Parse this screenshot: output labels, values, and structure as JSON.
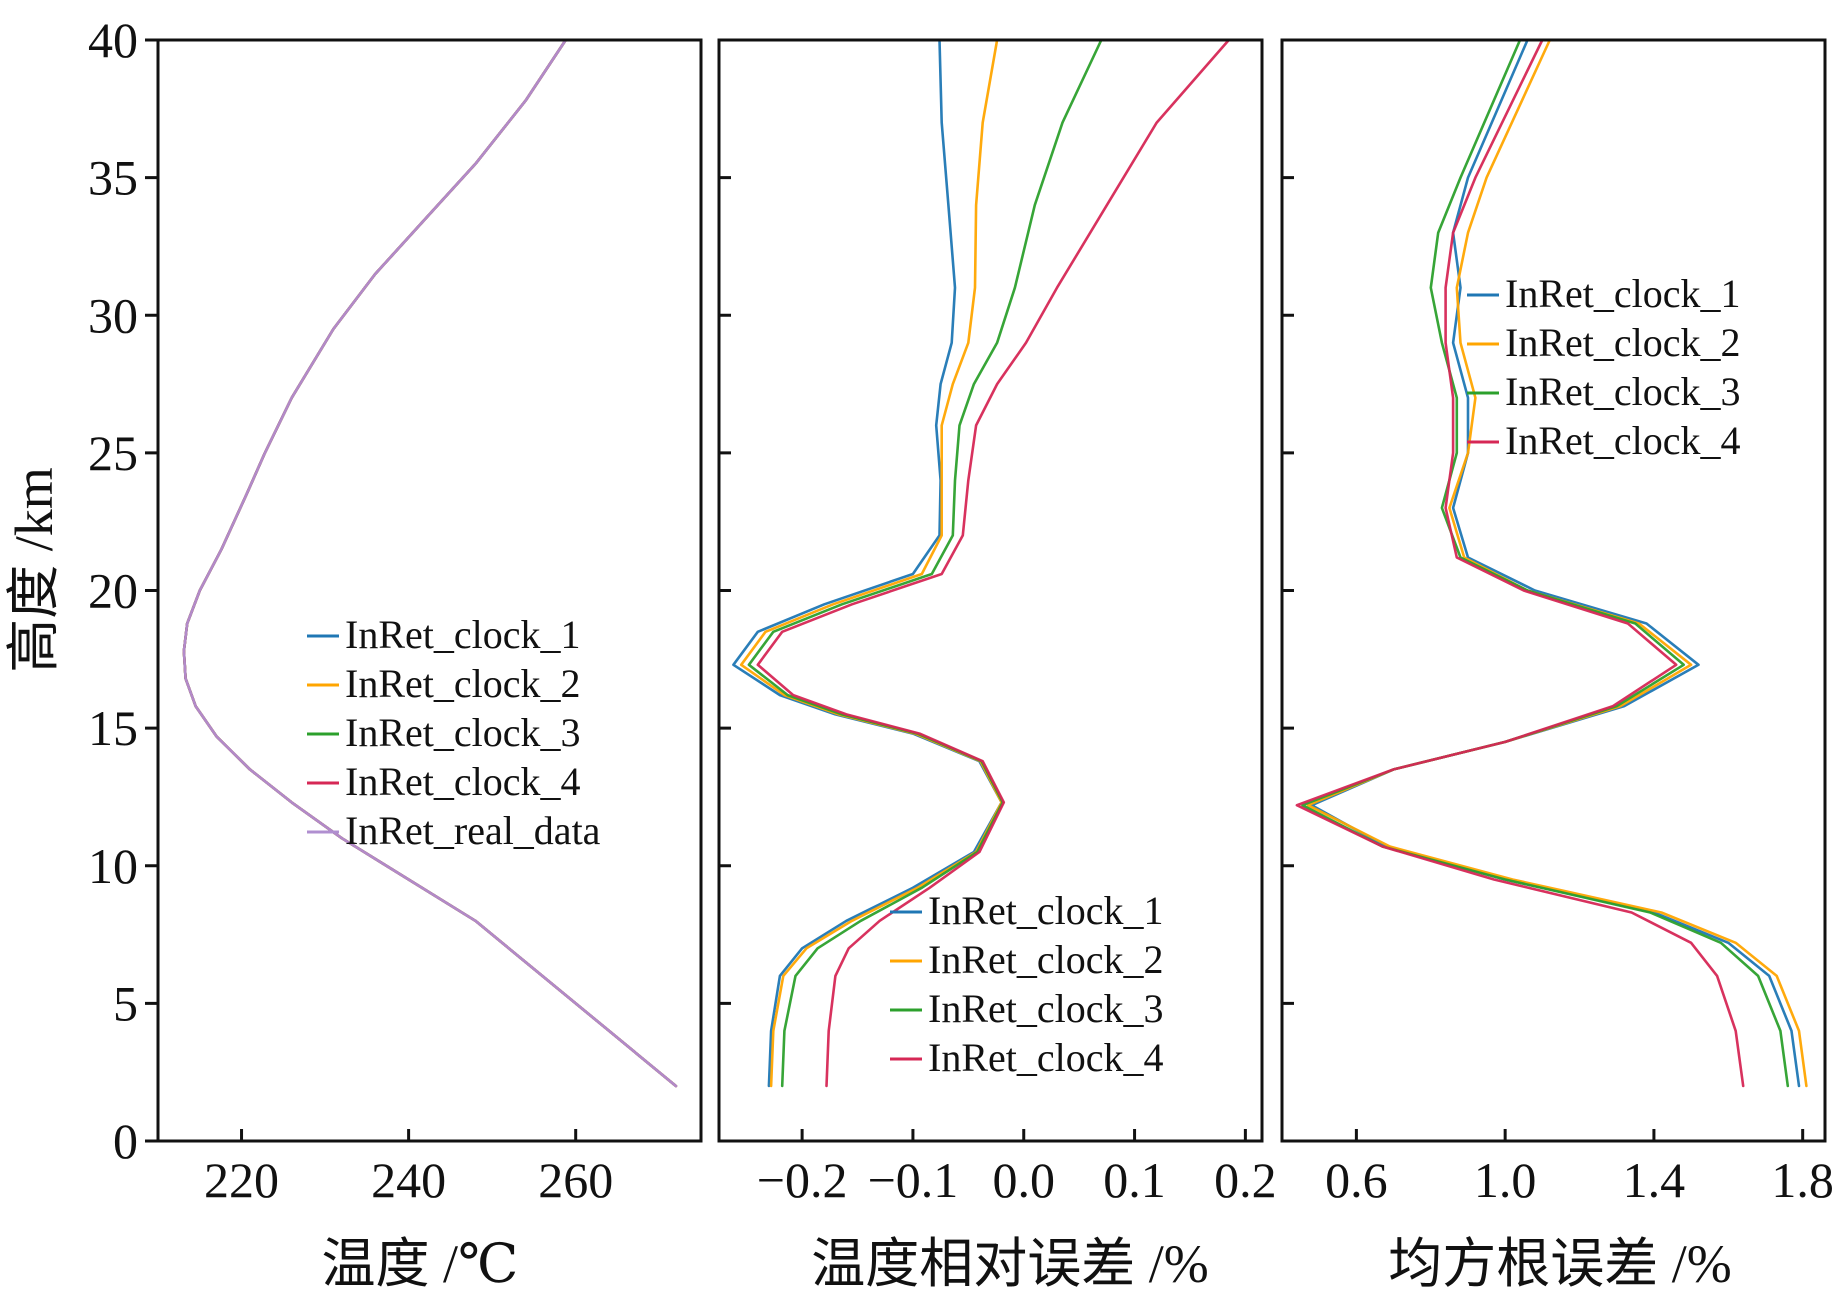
{
  "y_axis": {
    "label": "高度 /km",
    "ticks": [
      0,
      5,
      10,
      15,
      20,
      25,
      30,
      35,
      40
    ],
    "ylim": [
      0,
      40
    ]
  },
  "chart_data": [
    {
      "type": "line",
      "name": "temperature",
      "xlabel": "温度 /℃",
      "ylabel": "高度 /km",
      "xlim": [
        210,
        275
      ],
      "ylim": [
        0,
        40
      ],
      "xticks": [
        220,
        240,
        260
      ],
      "legend_position": "center-right",
      "legend": [
        "InRet_clock_1",
        "InRet_clock_2",
        "InRet_clock_3",
        "InRet_clock_4",
        "InRet_real_data"
      ],
      "series": [
        {
          "name": "InRet_clock_1",
          "color": "#1f77b4",
          "x": [
            272,
            264,
            256,
            248,
            240,
            232,
            226,
            221,
            217,
            214.5,
            213.3,
            213.1,
            213.5,
            215,
            217.6,
            220.6,
            222.8,
            226,
            231,
            236,
            242,
            248,
            254,
            258.8
          ],
          "y": [
            2,
            4,
            6,
            8,
            9.5,
            11,
            12.3,
            13.5,
            14.7,
            15.8,
            16.8,
            17.8,
            18.8,
            20,
            21.5,
            23.5,
            25,
            27,
            29.5,
            31.5,
            33.5,
            35.5,
            37.8,
            40
          ]
        },
        {
          "name": "InRet_clock_2",
          "color": "#ffa500",
          "x": [
            272,
            264,
            256,
            248,
            240,
            232,
            226,
            221,
            217,
            214.5,
            213.3,
            213.1,
            213.5,
            215,
            217.6,
            220.6,
            222.8,
            226,
            231,
            236,
            242,
            248,
            254,
            258.8
          ],
          "y": [
            2,
            4,
            6,
            8,
            9.5,
            11,
            12.3,
            13.5,
            14.7,
            15.8,
            16.8,
            17.8,
            18.8,
            20,
            21.5,
            23.5,
            25,
            27,
            29.5,
            31.5,
            33.5,
            35.5,
            37.8,
            40
          ]
        },
        {
          "name": "InRet_clock_3",
          "color": "#2ca02c",
          "x": [
            272,
            264,
            256,
            248,
            240,
            232,
            226,
            221,
            217,
            214.5,
            213.3,
            213.1,
            213.5,
            215,
            217.6,
            220.6,
            222.8,
            226,
            231,
            236,
            242,
            248,
            254,
            258.8
          ],
          "y": [
            2,
            4,
            6,
            8,
            9.5,
            11,
            12.3,
            13.5,
            14.7,
            15.8,
            16.8,
            17.8,
            18.8,
            20,
            21.5,
            23.5,
            25,
            27,
            29.5,
            31.5,
            33.5,
            35.5,
            37.8,
            40
          ]
        },
        {
          "name": "InRet_clock_4",
          "color": "#d62755",
          "x": [
            272,
            264,
            256,
            248,
            240,
            232,
            226,
            221,
            217,
            214.5,
            213.3,
            213.1,
            213.5,
            215,
            217.6,
            220.6,
            222.8,
            226,
            231,
            236,
            242,
            248,
            254,
            258.8
          ],
          "y": [
            2,
            4,
            6,
            8,
            9.5,
            11,
            12.3,
            13.5,
            14.7,
            15.8,
            16.8,
            17.8,
            18.8,
            20,
            21.5,
            23.5,
            25,
            27,
            29.5,
            31.5,
            33.5,
            35.5,
            37.8,
            40
          ]
        },
        {
          "name": "InRet_real_data",
          "color": "#b08fd0",
          "x": [
            272,
            264,
            256,
            248,
            240,
            232,
            226,
            221,
            217,
            214.5,
            213.3,
            213.1,
            213.5,
            215,
            217.6,
            220.6,
            222.8,
            226,
            231,
            236,
            242,
            248,
            254,
            258.8
          ],
          "y": [
            2,
            4,
            6,
            8,
            9.5,
            11,
            12.3,
            13.5,
            14.7,
            15.8,
            16.8,
            17.8,
            18.8,
            20,
            21.5,
            23.5,
            25,
            27,
            29.5,
            31.5,
            33.5,
            35.5,
            37.8,
            40
          ]
        }
      ]
    },
    {
      "type": "line",
      "name": "relative_error",
      "xlabel": "温度相对误差 /%",
      "ylabel": "",
      "xlim": [
        -0.275,
        0.215
      ],
      "ylim": [
        0,
        40
      ],
      "xticks": [
        -0.2,
        -0.1,
        0.0,
        0.1,
        0.2
      ],
      "xtick_labels": [
        "−0.2",
        "−0.1",
        "0.0",
        "0.1",
        "0.2"
      ],
      "legend_position": "bottom-right",
      "legend": [
        "InRet_clock_1",
        "InRet_clock_2",
        "InRet_clock_3",
        "InRet_clock_4"
      ],
      "series": [
        {
          "name": "InRet_clock_1",
          "color": "#1f77b4",
          "x": [
            -0.23,
            -0.228,
            -0.22,
            -0.2,
            -0.16,
            -0.1,
            -0.045,
            -0.02,
            -0.04,
            -0.1,
            -0.17,
            -0.22,
            -0.262,
            -0.24,
            -0.18,
            -0.1,
            -0.076,
            -0.075,
            -0.079,
            -0.075,
            -0.065,
            -0.062,
            -0.068,
            -0.074,
            -0.076
          ],
          "y": [
            2,
            4,
            6,
            7,
            8,
            9.2,
            10.5,
            12.3,
            13.8,
            14.8,
            15.5,
            16.2,
            17.3,
            18.5,
            19.5,
            20.6,
            22,
            24,
            26,
            27.5,
            29,
            31,
            34,
            37,
            40
          ]
        },
        {
          "name": "InRet_clock_2",
          "color": "#ffa500",
          "x": [
            -0.228,
            -0.226,
            -0.217,
            -0.196,
            -0.155,
            -0.096,
            -0.043,
            -0.02,
            -0.039,
            -0.098,
            -0.167,
            -0.216,
            -0.255,
            -0.233,
            -0.172,
            -0.092,
            -0.074,
            -0.074,
            -0.074,
            -0.064,
            -0.05,
            -0.044,
            -0.043,
            -0.037,
            -0.024
          ],
          "y": [
            2,
            4,
            6,
            7,
            8,
            9.2,
            10.5,
            12.3,
            13.8,
            14.8,
            15.5,
            16.2,
            17.3,
            18.5,
            19.5,
            20.6,
            22,
            24,
            26,
            27.5,
            29,
            31,
            34,
            37,
            40
          ]
        },
        {
          "name": "InRet_clock_3",
          "color": "#2ca02c",
          "x": [
            -0.218,
            -0.216,
            -0.206,
            -0.186,
            -0.147,
            -0.092,
            -0.042,
            -0.019,
            -0.038,
            -0.096,
            -0.164,
            -0.213,
            -0.248,
            -0.226,
            -0.164,
            -0.083,
            -0.064,
            -0.062,
            -0.058,
            -0.045,
            -0.024,
            -0.008,
            0.01,
            0.035,
            0.07
          ],
          "y": [
            2,
            4,
            6,
            7,
            8,
            9.2,
            10.5,
            12.3,
            13.8,
            14.8,
            15.5,
            16.2,
            17.3,
            18.5,
            19.5,
            20.6,
            22,
            24,
            26,
            27.5,
            29,
            31,
            34,
            37,
            40
          ]
        },
        {
          "name": "InRet_clock_4",
          "color": "#d62755",
          "x": [
            -0.178,
            -0.176,
            -0.17,
            -0.158,
            -0.13,
            -0.085,
            -0.04,
            -0.018,
            -0.037,
            -0.094,
            -0.16,
            -0.208,
            -0.24,
            -0.218,
            -0.155,
            -0.074,
            -0.055,
            -0.05,
            -0.043,
            -0.024,
            0.002,
            0.03,
            0.075,
            0.12,
            0.185
          ],
          "y": [
            2,
            4,
            6,
            7,
            8,
            9.2,
            10.5,
            12.3,
            13.8,
            14.8,
            15.5,
            16.2,
            17.3,
            18.5,
            19.5,
            20.6,
            22,
            24,
            26,
            27.5,
            29,
            31,
            34,
            37,
            40
          ]
        }
      ]
    },
    {
      "type": "line",
      "name": "rmse",
      "xlabel": "均方根误差 /%",
      "ylabel": "",
      "xlim": [
        0.4,
        1.86
      ],
      "ylim": [
        0,
        40
      ],
      "xticks": [
        0.6,
        1.0,
        1.4,
        1.8
      ],
      "xtick_labels": [
        "0.6",
        "1.0",
        "1.4",
        "1.8"
      ],
      "legend_position": "top-right",
      "legend": [
        "InRet_clock_1",
        "InRet_clock_2",
        "InRet_clock_3",
        "InRet_clock_4"
      ],
      "series": [
        {
          "name": "InRet_clock_1",
          "color": "#1f77b4",
          "x": [
            1.79,
            1.77,
            1.71,
            1.6,
            1.4,
            1.0,
            0.68,
            0.48,
            0.7,
            1.0,
            1.32,
            1.52,
            1.38,
            1.08,
            0.9,
            0.86,
            0.9,
            0.9,
            0.86,
            0.88,
            0.86,
            0.9,
            1.06
          ],
          "y": [
            2,
            4,
            6,
            7.2,
            8.3,
            9.5,
            10.7,
            12.2,
            13.5,
            14.5,
            15.8,
            17.3,
            18.8,
            20,
            21.2,
            23,
            25,
            27,
            29,
            31,
            33,
            35,
            40
          ]
        },
        {
          "name": "InRet_clock_2",
          "color": "#ffa500",
          "x": [
            1.81,
            1.79,
            1.73,
            1.62,
            1.42,
            1.02,
            0.69,
            0.47,
            0.7,
            1.0,
            1.31,
            1.5,
            1.36,
            1.06,
            0.89,
            0.85,
            0.9,
            0.92,
            0.88,
            0.87,
            0.9,
            0.95,
            1.12
          ],
          "y": [
            2,
            4,
            6,
            7.2,
            8.3,
            9.5,
            10.7,
            12.2,
            13.5,
            14.5,
            15.8,
            17.3,
            18.8,
            20,
            21.2,
            23,
            25,
            27,
            29,
            31,
            33,
            35,
            40
          ]
        },
        {
          "name": "InRet_clock_3",
          "color": "#2ca02c",
          "x": [
            1.76,
            1.74,
            1.68,
            1.58,
            1.39,
            1.0,
            0.67,
            0.455,
            0.7,
            1.0,
            1.3,
            1.48,
            1.35,
            1.06,
            0.88,
            0.83,
            0.87,
            0.87,
            0.83,
            0.8,
            0.82,
            0.88,
            1.04
          ],
          "y": [
            2,
            4,
            6,
            7.2,
            8.3,
            9.5,
            10.7,
            12.2,
            13.5,
            14.5,
            15.8,
            17.3,
            18.8,
            20,
            21.2,
            23,
            25,
            27,
            29,
            31,
            33,
            35,
            40
          ]
        },
        {
          "name": "InRet_clock_4",
          "color": "#d62755",
          "x": [
            1.64,
            1.62,
            1.57,
            1.5,
            1.34,
            0.97,
            0.67,
            0.44,
            0.7,
            1.0,
            1.29,
            1.46,
            1.33,
            1.05,
            0.87,
            0.84,
            0.86,
            0.86,
            0.84,
            0.84,
            0.86,
            0.92,
            1.1
          ],
          "y": [
            2,
            4,
            6,
            7.2,
            8.3,
            9.5,
            10.7,
            12.2,
            13.5,
            14.5,
            15.8,
            17.3,
            18.8,
            20,
            21.2,
            23,
            25,
            27,
            29,
            31,
            33,
            35,
            40
          ]
        }
      ]
    }
  ]
}
